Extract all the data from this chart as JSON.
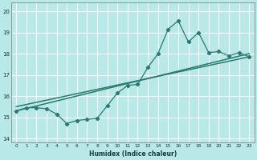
{
  "xlabel": "Humidex (Indice chaleur)",
  "background_color": "#b8e8e8",
  "grid_color": "#d0f0f0",
  "line_color": "#2a7a70",
  "xlim": [
    -0.5,
    23.5
  ],
  "ylim": [
    13.8,
    20.4
  ],
  "xtick_labels": [
    "0",
    "1",
    "2",
    "3",
    "4",
    "5",
    "6",
    "7",
    "8",
    "9",
    "10",
    "11",
    "12",
    "13",
    "14",
    "15",
    "16",
    "17",
    "18",
    "19",
    "20",
    "21",
    "22",
    "23"
  ],
  "ytick_vals": [
    14,
    15,
    16,
    17,
    18,
    19,
    20
  ],
  "series_zigzag_x": [
    0,
    1,
    2,
    3,
    4,
    5,
    6,
    7,
    8,
    9,
    10,
    11,
    12,
    13,
    14,
    15,
    16,
    17,
    18,
    19,
    20,
    21,
    22,
    23
  ],
  "series_zigzag_y": [
    15.3,
    15.45,
    15.45,
    15.4,
    15.15,
    14.7,
    14.85,
    14.9,
    14.95,
    15.55,
    16.15,
    16.5,
    16.55,
    17.35,
    18.0,
    19.15,
    19.55,
    18.55,
    19.0,
    18.05,
    18.1,
    17.9,
    18.05,
    17.85
  ],
  "series_line1_x": [
    0,
    23
  ],
  "series_line1_y": [
    15.3,
    18.0
  ],
  "series_line2_x": [
    0,
    23
  ],
  "series_line2_y": [
    15.5,
    17.85
  ]
}
